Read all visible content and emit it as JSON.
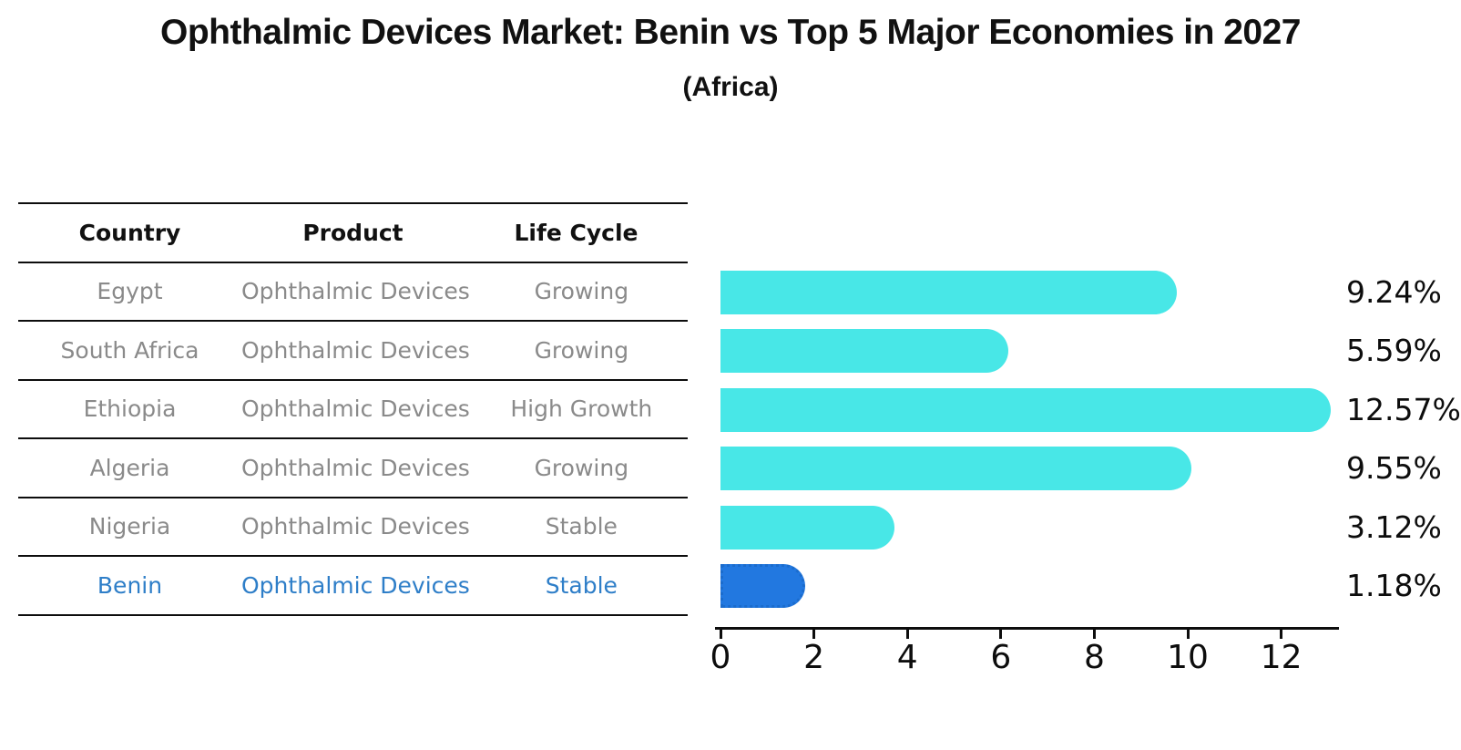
{
  "title": "Ophthalmic Devices Market: Benin vs Top 5 Major Economies in 2027",
  "subtitle": "(Africa)",
  "table": {
    "headers": [
      "Country",
      "Product",
      "Life Cycle"
    ],
    "rows": [
      {
        "country": "Egypt",
        "product": "Ophthalmic Devices",
        "life_cycle": "Growing",
        "highlight": false
      },
      {
        "country": "South Africa",
        "product": "Ophthalmic Devices",
        "life_cycle": "Growing",
        "highlight": false
      },
      {
        "country": "Ethiopia",
        "product": "Ophthalmic Devices",
        "life_cycle": "High Growth",
        "highlight": false
      },
      {
        "country": "Algeria",
        "product": "Ophthalmic Devices",
        "life_cycle": "Growing",
        "highlight": false
      },
      {
        "country": "Nigeria",
        "product": "Ophthalmic Devices",
        "life_cycle": "Stable",
        "highlight": false
      },
      {
        "country": "Benin",
        "product": "Ophthalmic Devices",
        "life_cycle": "Stable",
        "highlight": true
      }
    ]
  },
  "chart_data": {
    "type": "bar",
    "orientation": "horizontal",
    "title": "Ophthalmic Devices Market: Benin vs Top 5 Major Economies in 2027 (Africa)",
    "categories": [
      "Egypt",
      "South Africa",
      "Ethiopia",
      "Algeria",
      "Nigeria",
      "Benin"
    ],
    "values": [
      9.24,
      5.59,
      12.57,
      9.55,
      3.12,
      1.18
    ],
    "value_labels": [
      "9.24%",
      "5.59%",
      "12.57%",
      "9.55%",
      "3.12%",
      "1.18%"
    ],
    "unit": "%",
    "xlabel": "",
    "ylabel": "",
    "x_ticks": [
      "0",
      "2",
      "4",
      "6",
      "8",
      "10",
      "12"
    ],
    "xlim": [
      0,
      13.2
    ],
    "grid": false,
    "legend": false,
    "highlight_index": 5
  },
  "colors": {
    "bar": "#48E7E7",
    "highlight_bar": "#2278E0",
    "highlight_border": "#1b6ccd",
    "highlight_text": "#2E7EC8",
    "table_text": "#8a8a8a",
    "heading_text": "#111111",
    "axis": "#0d0d0d"
  }
}
